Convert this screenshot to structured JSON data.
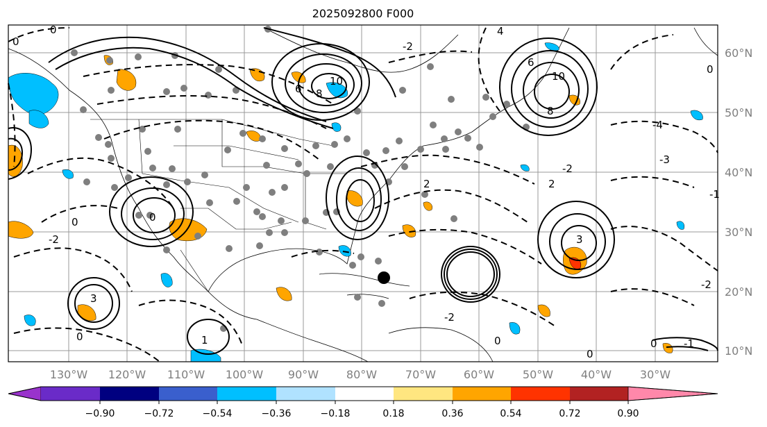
{
  "title": "2025092800 F000",
  "longitude_labels": [
    "130°W",
    "120°W",
    "110°W",
    "100°W",
    "90°W",
    "80°W",
    "70°W",
    "60°W",
    "50°W",
    "40°W",
    "30°W"
  ],
  "latitude_labels": [
    "60°N",
    "50°N",
    "40°N",
    "30°N",
    "20°N",
    "10°N"
  ],
  "contour_labels": [
    "0",
    "6",
    "10",
    "8",
    "4",
    "-1",
    "-2",
    "-3",
    "3",
    "1",
    "-4",
    "2"
  ],
  "colorbar": {
    "ticks": [
      "−0.90",
      "−0.72",
      "−0.54",
      "−0.36",
      "−0.18",
      "0.18",
      "0.36",
      "0.54",
      "0.72",
      "0.90"
    ],
    "colors": {
      "under": "#9933cc",
      "b1": "#6a2bc8",
      "b2": "#000080",
      "b3": "#3a5fcd",
      "b4": "#00bfff",
      "b5": "#b0e2ff",
      "b6": "#ffffff",
      "b7": "#ffe680",
      "b8": "#ffa500",
      "b9": "#ff3300",
      "b10": "#b22222",
      "over": "#ff88aa"
    }
  }
}
